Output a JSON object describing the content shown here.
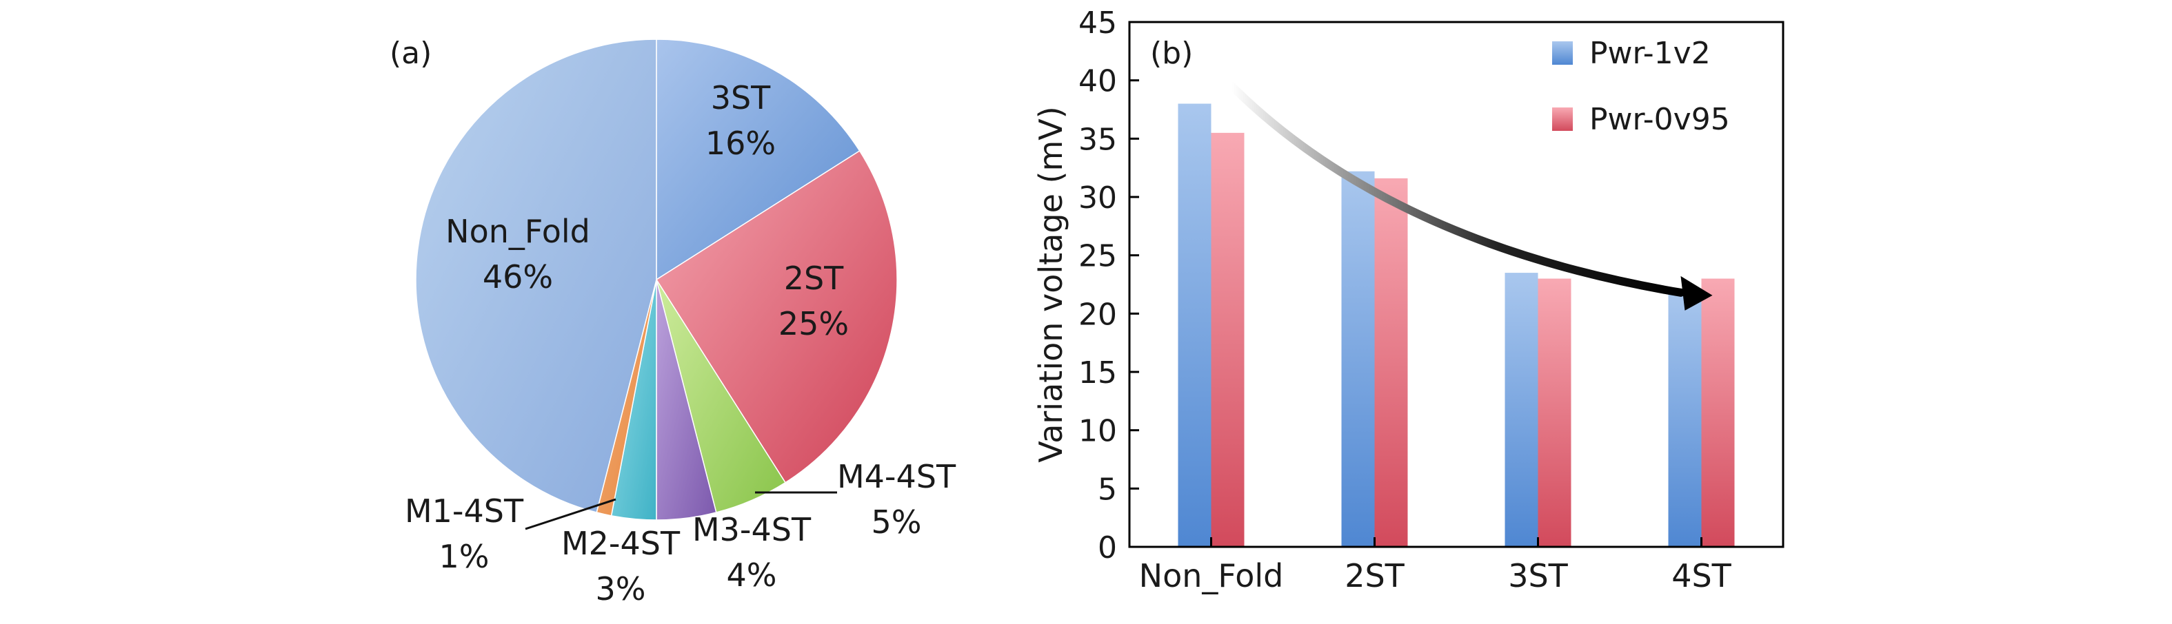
{
  "panel_a": {
    "label": "(a)",
    "chart_data": {
      "type": "pie",
      "title": "",
      "slices": [
        {
          "name": "3ST",
          "value_label": "16%",
          "value": 16,
          "color_light": "#a9c4ec",
          "color_dark": "#5f8fd2"
        },
        {
          "name": "2ST",
          "value_label": "25%",
          "value": 25,
          "color_light": "#f4a3ae",
          "color_dark": "#cf4257"
        },
        {
          "name": "M4-4ST",
          "value_label": "5%",
          "value": 5,
          "color_light": "#cdeb9c",
          "color_dark": "#89c44a"
        },
        {
          "name": "M3-4ST",
          "value_label": "4%",
          "value": 4,
          "color_light": "#bca2dc",
          "color_dark": "#7c59ad"
        },
        {
          "name": "M2-4ST",
          "value_label": "3%",
          "value": 3,
          "color_light": "#8fdbe6",
          "color_dark": "#3fb2c6"
        },
        {
          "name": "M1-4ST",
          "value_label": "1%",
          "value": 1,
          "color_light": "#f6b27a",
          "color_dark": "#e4823b"
        },
        {
          "name": "Non_Fold",
          "value_label": "46%",
          "value": 46,
          "color_light": "#b9d1ee",
          "color_dark": "#8aabdd"
        }
      ],
      "start": "12 o'clock",
      "direction": "clockwise"
    }
  },
  "panel_b": {
    "label": "(b)",
    "chart_data": {
      "type": "bar",
      "title": "",
      "xlabel": "",
      "ylabel": "Variation voltage (mV)",
      "categories": [
        "Non_Fold",
        "2ST",
        "3ST",
        "4ST"
      ],
      "series": [
        {
          "name": "Pwr-1v2",
          "values": [
            38,
            32.2,
            23.5,
            22
          ],
          "color_light": "#a9c7ee",
          "color_dark": "#4f87d2"
        },
        {
          "name": "Pwr-0v95",
          "values": [
            35.5,
            31.6,
            23,
            23
          ],
          "color_light": "#f8a9b3",
          "color_dark": "#d24a5c"
        }
      ],
      "ylim": [
        0,
        45
      ],
      "yticks": [
        "0",
        "5",
        "10",
        "15",
        "20",
        "25",
        "30",
        "35",
        "40",
        "45"
      ],
      "legend": "top-right",
      "grid": false,
      "annotation": "trend arrow from Non_Fold to 4ST"
    }
  }
}
